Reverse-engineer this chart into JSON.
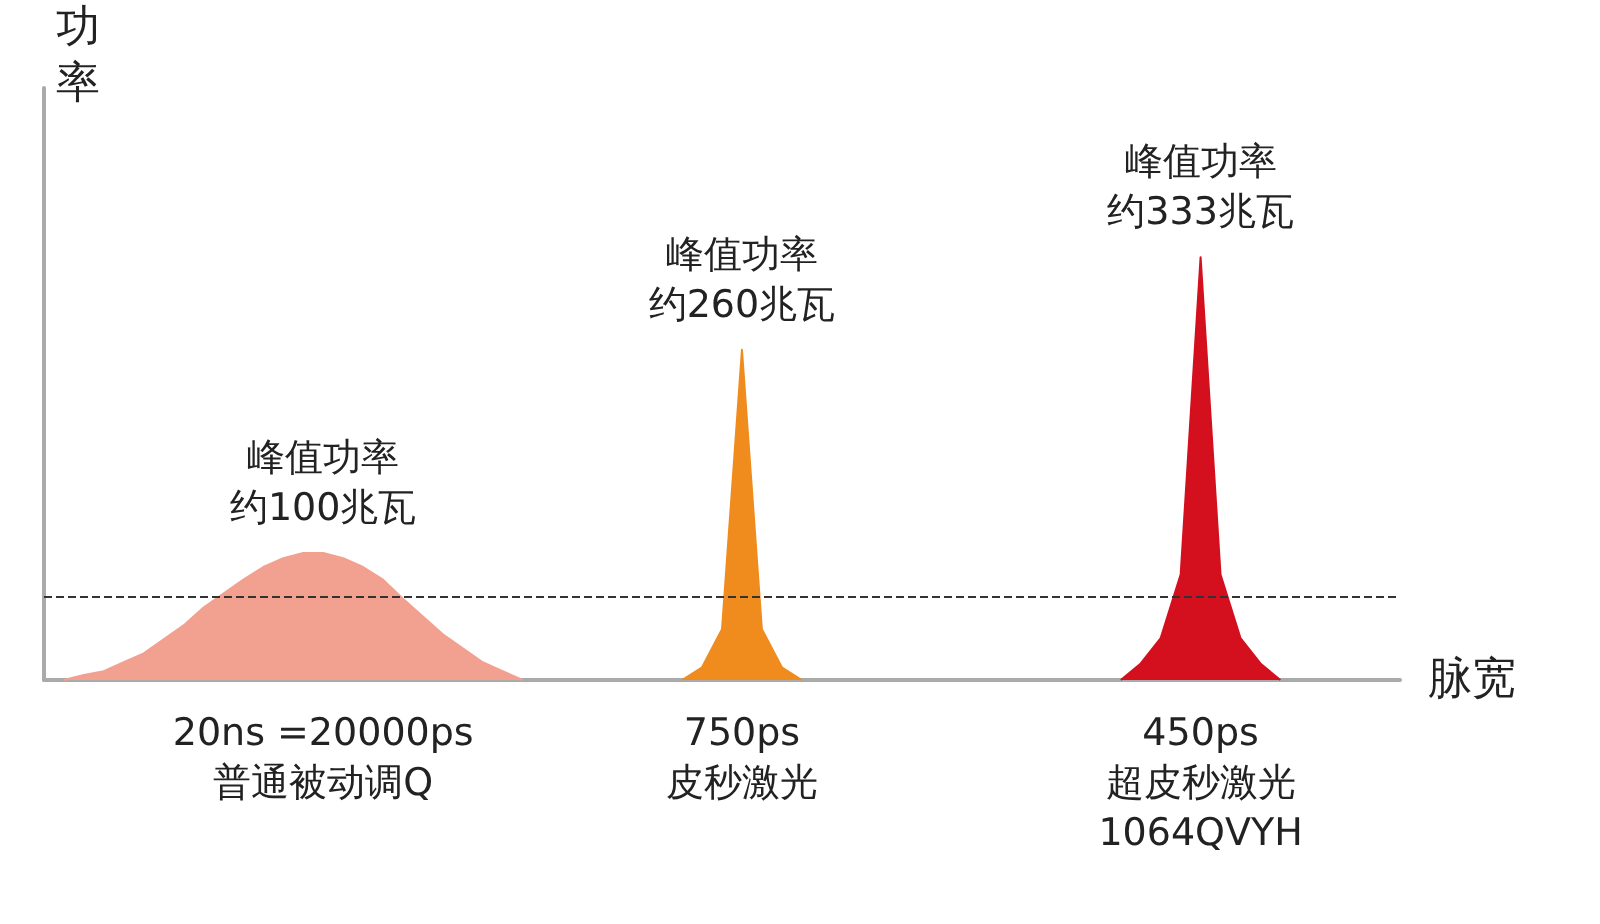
{
  "chart_data": {
    "type": "area",
    "xlabel": "脉宽",
    "ylabel": "功率",
    "grid": false,
    "categories": [
      null,
      null,
      null,
      null,
      null,
      null,
      null,
      null,
      null,
      null,
      null,
      null,
      null,
      null,
      "20ns =20000ps\n普通被动调Q",
      null,
      null,
      null,
      null,
      null,
      null,
      null,
      null,
      null,
      null,
      null,
      null,
      null,
      null,
      null,
      null,
      null,
      null,
      null,
      null,
      "750ps\n皮秒激光",
      null,
      null,
      null,
      null,
      null,
      null,
      null,
      null,
      null,
      null,
      null,
      null,
      null,
      null,
      null,
      null,
      null,
      null,
      null,
      null,
      null,
      null,
      "450ps\n超皮秒激光\n1064QVYH",
      null,
      null,
      null,
      null,
      null,
      null,
      null,
      null,
      null,
      null
    ],
    "series": [
      {
        "color": "#f2a08f",
        "values": [
          null,
          0,
          4,
          7,
          14,
          21,
          32,
          43,
          57,
          68,
          79,
          89,
          96,
          100,
          100,
          96,
          89,
          79,
          64,
          50,
          36,
          25,
          14,
          7,
          0,
          null,
          null,
          null,
          null,
          null,
          null,
          null,
          null,
          null,
          null,
          null,
          null,
          null,
          null,
          null,
          null,
          null,
          null,
          null,
          null,
          null,
          null,
          null,
          null,
          null,
          null,
          null,
          null,
          null,
          null,
          null,
          null,
          null,
          null,
          null,
          null,
          null,
          null,
          null,
          null,
          null,
          null,
          null,
          null
        ],
        "value_labels": [
          null,
          null,
          null,
          null,
          null,
          null,
          null,
          null,
          null,
          null,
          null,
          null,
          null,
          null,
          "峰值功率约100兆瓦",
          null,
          null,
          null,
          null,
          null,
          null,
          null,
          null,
          null,
          null,
          null,
          null,
          null,
          null,
          null,
          null,
          null,
          null,
          null,
          null,
          null,
          null,
          null,
          null,
          null,
          null,
          null,
          null,
          null,
          null,
          null,
          null,
          null,
          null,
          null,
          null,
          null,
          null,
          null,
          null,
          null,
          null,
          null,
          null,
          null,
          null,
          null,
          null,
          null,
          null,
          null,
          null,
          null,
          null
        ]
      },
      {
        "color": "#f08c1e",
        "values": [
          null,
          null,
          null,
          null,
          null,
          null,
          null,
          null,
          null,
          null,
          null,
          null,
          null,
          null,
          null,
          null,
          null,
          null,
          null,
          null,
          null,
          null,
          null,
          null,
          null,
          null,
          null,
          null,
          null,
          null,
          null,
          null,
          0,
          10,
          40,
          260,
          40,
          10,
          0,
          null,
          null,
          null,
          null,
          null,
          null,
          null,
          null,
          null,
          null,
          null,
          null,
          null,
          null,
          null,
          null,
          null,
          null,
          null,
          null,
          null,
          null,
          null,
          null,
          null,
          null,
          null,
          null,
          null,
          null
        ],
        "value_labels": [
          null,
          null,
          null,
          null,
          null,
          null,
          null,
          null,
          null,
          null,
          null,
          null,
          null,
          null,
          null,
          null,
          null,
          null,
          null,
          null,
          null,
          null,
          null,
          null,
          null,
          null,
          null,
          null,
          null,
          null,
          null,
          null,
          null,
          null,
          null,
          "峰值功率约260兆瓦",
          null,
          null,
          null,
          null,
          null,
          null,
          null,
          null,
          null,
          null,
          null,
          null,
          null,
          null,
          null,
          null,
          null,
          null,
          null,
          null,
          null,
          null,
          null,
          null,
          null,
          null,
          null,
          null,
          null,
          null,
          null,
          null,
          null
        ]
      },
      {
        "color": "#d4101e",
        "values": [
          null,
          null,
          null,
          null,
          null,
          null,
          null,
          null,
          null,
          null,
          null,
          null,
          null,
          null,
          null,
          null,
          null,
          null,
          null,
          null,
          null,
          null,
          null,
          null,
          null,
          null,
          null,
          null,
          null,
          null,
          null,
          null,
          null,
          null,
          null,
          null,
          null,
          null,
          null,
          null,
          null,
          null,
          null,
          null,
          null,
          null,
          null,
          null,
          null,
          null,
          null,
          null,
          null,
          null,
          0,
          13,
          33,
          83,
          333,
          83,
          33,
          13,
          0,
          null,
          null,
          null,
          null,
          null,
          null
        ],
        "value_labels": [
          null,
          null,
          null,
          null,
          null,
          null,
          null,
          null,
          null,
          null,
          null,
          null,
          null,
          null,
          null,
          null,
          null,
          null,
          null,
          null,
          null,
          null,
          null,
          null,
          null,
          null,
          null,
          null,
          null,
          null,
          null,
          null,
          null,
          null,
          null,
          null,
          null,
          null,
          null,
          null,
          null,
          null,
          null,
          null,
          null,
          null,
          null,
          null,
          null,
          null,
          null,
          null,
          null,
          null,
          null,
          null,
          null,
          null,
          "峰值功率约333兆瓦",
          null,
          null,
          null,
          null,
          null,
          null,
          null,
          null,
          null,
          null
        ]
      }
    ],
    "ref_lines": [
      {
        "axis": "y",
        "value": 65,
        "color": "#333333",
        "line_style": "dashed"
      }
    ]
  }
}
